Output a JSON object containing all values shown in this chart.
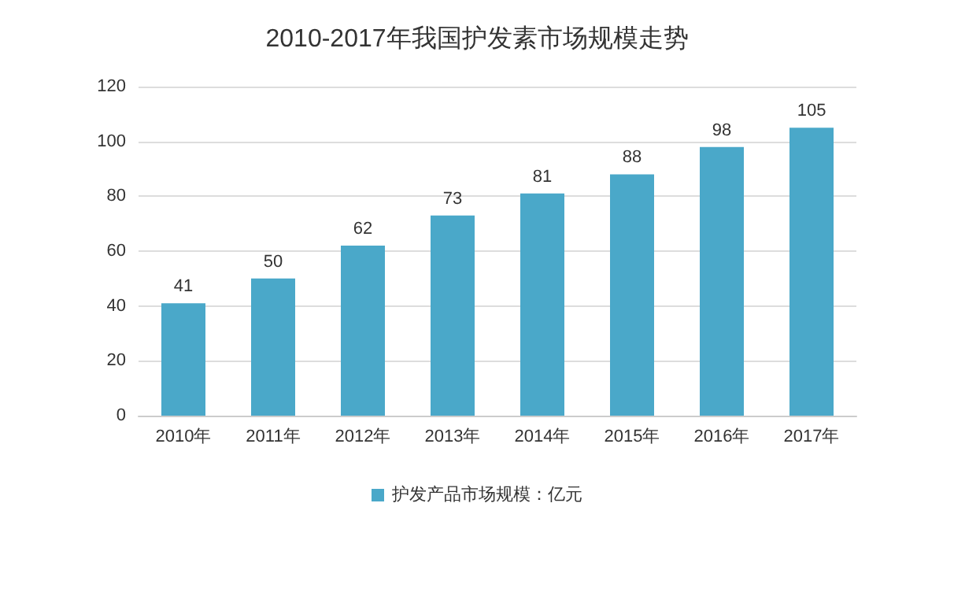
{
  "chart_data": {
    "type": "bar",
    "title": "2010-2017年我国护发素市场规模走势",
    "categories": [
      "2010年",
      "2011年",
      "2012年",
      "2013年",
      "2014年",
      "2015年",
      "2016年",
      "2017年"
    ],
    "series": [
      {
        "name": "护发产品市场规模：亿元",
        "color": "#4aa8c9",
        "values": [
          41,
          50,
          62,
          73,
          81,
          88,
          98,
          105
        ]
      }
    ],
    "ylim": [
      0,
      120
    ],
    "yticks": [
      0,
      20,
      40,
      60,
      80,
      100,
      120
    ],
    "grid": "y",
    "legend": "bottom",
    "data_labels": true
  }
}
